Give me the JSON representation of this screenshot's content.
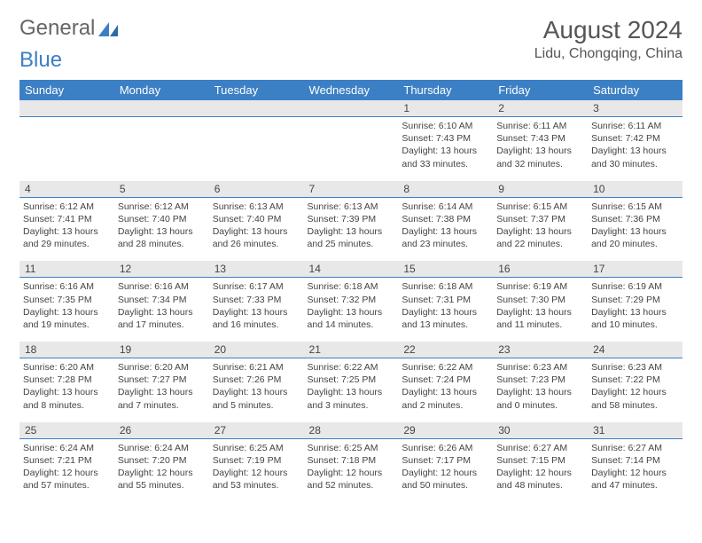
{
  "logo": {
    "general": "General",
    "blue": "Blue"
  },
  "title": "August 2024",
  "location": "Lidu, Chongqing, China",
  "weekdays": [
    "Sunday",
    "Monday",
    "Tuesday",
    "Wednesday",
    "Thursday",
    "Friday",
    "Saturday"
  ],
  "colors": {
    "header_bg": "#3b7fc4",
    "header_text": "#ffffff",
    "daynum_bg": "#e8e8e8",
    "day_border": "#3b7fc4",
    "body_text": "#444444"
  },
  "weeks": [
    [
      null,
      null,
      null,
      null,
      {
        "n": "1",
        "sr": "6:10 AM",
        "ss": "7:43 PM",
        "dl": "13 hours and 33 minutes."
      },
      {
        "n": "2",
        "sr": "6:11 AM",
        "ss": "7:43 PM",
        "dl": "13 hours and 32 minutes."
      },
      {
        "n": "3",
        "sr": "6:11 AM",
        "ss": "7:42 PM",
        "dl": "13 hours and 30 minutes."
      }
    ],
    [
      {
        "n": "4",
        "sr": "6:12 AM",
        "ss": "7:41 PM",
        "dl": "13 hours and 29 minutes."
      },
      {
        "n": "5",
        "sr": "6:12 AM",
        "ss": "7:40 PM",
        "dl": "13 hours and 28 minutes."
      },
      {
        "n": "6",
        "sr": "6:13 AM",
        "ss": "7:40 PM",
        "dl": "13 hours and 26 minutes."
      },
      {
        "n": "7",
        "sr": "6:13 AM",
        "ss": "7:39 PM",
        "dl": "13 hours and 25 minutes."
      },
      {
        "n": "8",
        "sr": "6:14 AM",
        "ss": "7:38 PM",
        "dl": "13 hours and 23 minutes."
      },
      {
        "n": "9",
        "sr": "6:15 AM",
        "ss": "7:37 PM",
        "dl": "13 hours and 22 minutes."
      },
      {
        "n": "10",
        "sr": "6:15 AM",
        "ss": "7:36 PM",
        "dl": "13 hours and 20 minutes."
      }
    ],
    [
      {
        "n": "11",
        "sr": "6:16 AM",
        "ss": "7:35 PM",
        "dl": "13 hours and 19 minutes."
      },
      {
        "n": "12",
        "sr": "6:16 AM",
        "ss": "7:34 PM",
        "dl": "13 hours and 17 minutes."
      },
      {
        "n": "13",
        "sr": "6:17 AM",
        "ss": "7:33 PM",
        "dl": "13 hours and 16 minutes."
      },
      {
        "n": "14",
        "sr": "6:18 AM",
        "ss": "7:32 PM",
        "dl": "13 hours and 14 minutes."
      },
      {
        "n": "15",
        "sr": "6:18 AM",
        "ss": "7:31 PM",
        "dl": "13 hours and 13 minutes."
      },
      {
        "n": "16",
        "sr": "6:19 AM",
        "ss": "7:30 PM",
        "dl": "13 hours and 11 minutes."
      },
      {
        "n": "17",
        "sr": "6:19 AM",
        "ss": "7:29 PM",
        "dl": "13 hours and 10 minutes."
      }
    ],
    [
      {
        "n": "18",
        "sr": "6:20 AM",
        "ss": "7:28 PM",
        "dl": "13 hours and 8 minutes."
      },
      {
        "n": "19",
        "sr": "6:20 AM",
        "ss": "7:27 PM",
        "dl": "13 hours and 7 minutes."
      },
      {
        "n": "20",
        "sr": "6:21 AM",
        "ss": "7:26 PM",
        "dl": "13 hours and 5 minutes."
      },
      {
        "n": "21",
        "sr": "6:22 AM",
        "ss": "7:25 PM",
        "dl": "13 hours and 3 minutes."
      },
      {
        "n": "22",
        "sr": "6:22 AM",
        "ss": "7:24 PM",
        "dl": "13 hours and 2 minutes."
      },
      {
        "n": "23",
        "sr": "6:23 AM",
        "ss": "7:23 PM",
        "dl": "13 hours and 0 minutes."
      },
      {
        "n": "24",
        "sr": "6:23 AM",
        "ss": "7:22 PM",
        "dl": "12 hours and 58 minutes."
      }
    ],
    [
      {
        "n": "25",
        "sr": "6:24 AM",
        "ss": "7:21 PM",
        "dl": "12 hours and 57 minutes."
      },
      {
        "n": "26",
        "sr": "6:24 AM",
        "ss": "7:20 PM",
        "dl": "12 hours and 55 minutes."
      },
      {
        "n": "27",
        "sr": "6:25 AM",
        "ss": "7:19 PM",
        "dl": "12 hours and 53 minutes."
      },
      {
        "n": "28",
        "sr": "6:25 AM",
        "ss": "7:18 PM",
        "dl": "12 hours and 52 minutes."
      },
      {
        "n": "29",
        "sr": "6:26 AM",
        "ss": "7:17 PM",
        "dl": "12 hours and 50 minutes."
      },
      {
        "n": "30",
        "sr": "6:27 AM",
        "ss": "7:15 PM",
        "dl": "12 hours and 48 minutes."
      },
      {
        "n": "31",
        "sr": "6:27 AM",
        "ss": "7:14 PM",
        "dl": "12 hours and 47 minutes."
      }
    ]
  ],
  "labels": {
    "sunrise": "Sunrise: ",
    "sunset": "Sunset: ",
    "daylight": "Daylight: "
  }
}
